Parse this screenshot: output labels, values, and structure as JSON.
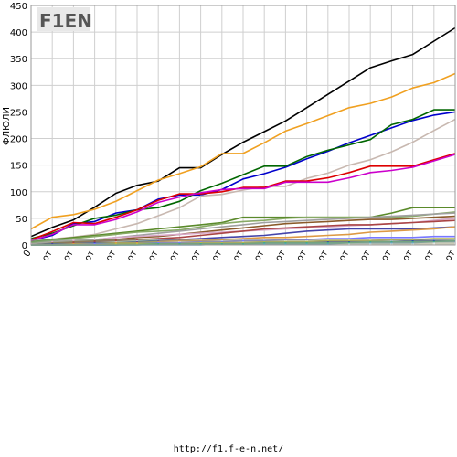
{
  "chart_data": {
    "type": "line",
    "ylabel": "ФЛЮЛИ",
    "ylim": [
      0,
      450
    ],
    "yticks": [
      0,
      50,
      100,
      150,
      200,
      250,
      300,
      350,
      400,
      450
    ],
    "x_ticks": [
      "0",
      "от",
      "от",
      "от",
      "от",
      "от",
      "от",
      "от",
      "от",
      "от",
      "от",
      "от",
      "от",
      "от",
      "от",
      "от",
      "от",
      "от",
      "от",
      "от",
      "от"
    ],
    "grid": true,
    "logo_text": "F1EN",
    "series": [
      {
        "color": "#000000",
        "values": [
          16,
          33,
          47,
          71,
          97,
          112,
          120,
          145,
          145,
          170,
          193,
          213,
          233,
          258,
          283,
          308,
          333,
          346,
          358,
          383,
          408
        ]
      },
      {
        "color": "#f0a020",
        "values": [
          30,
          52,
          57,
          67,
          82,
          102,
          122,
          134,
          147,
          172,
          172,
          192,
          214,
          228,
          243,
          258,
          266,
          278,
          295,
          305,
          322
        ]
      },
      {
        "color": "#0000cc",
        "values": [
          8,
          18,
          40,
          44,
          60,
          66,
          86,
          94,
          94,
          104,
          124,
          134,
          146,
          162,
          176,
          192,
          206,
          220,
          234,
          244,
          250
        ]
      },
      {
        "color": "#006600",
        "values": [
          12,
          22,
          36,
          50,
          56,
          66,
          70,
          82,
          102,
          116,
          132,
          148,
          148,
          166,
          178,
          188,
          198,
          226,
          236,
          254,
          254
        ]
      },
      {
        "color": "#c8b8b0",
        "values": [
          6,
          11,
          15,
          20,
          30,
          40,
          55,
          70,
          92,
          95,
          103,
          110,
          110,
          125,
          135,
          150,
          160,
          175,
          193,
          215,
          236
        ]
      },
      {
        "color": "#dd0000",
        "values": [
          10,
          25,
          42,
          40,
          52,
          66,
          84,
          96,
          96,
          100,
          108,
          108,
          120,
          120,
          126,
          136,
          148,
          148,
          148,
          160,
          172
        ]
      },
      {
        "color": "#cc00cc",
        "values": [
          8,
          20,
          38,
          38,
          48,
          62,
          80,
          90,
          98,
          104,
          106,
          106,
          118,
          118,
          118,
          126,
          136,
          140,
          146,
          158,
          170
        ]
      },
      {
        "color": "#5a8a2a",
        "values": [
          6,
          10,
          14,
          18,
          22,
          26,
          30,
          34,
          38,
          42,
          52,
          52,
          52,
          52,
          52,
          52,
          52,
          60,
          70,
          70,
          70
        ]
      },
      {
        "color": "#88aa66",
        "values": [
          4,
          8,
          12,
          16,
          20,
          24,
          26,
          28,
          34,
          40,
          44,
          46,
          50,
          52,
          52,
          52,
          52,
          52,
          54,
          58,
          62
        ]
      },
      {
        "color": "#a0a0a0",
        "values": [
          2,
          4,
          8,
          10,
          14,
          18,
          22,
          26,
          30,
          34,
          38,
          42,
          44,
          46,
          48,
          50,
          52,
          54,
          56,
          58,
          60
        ]
      },
      {
        "color": "#8a5a2a",
        "values": [
          2,
          4,
          6,
          8,
          10,
          14,
          16,
          20,
          24,
          28,
          32,
          36,
          40,
          42,
          44,
          46,
          48,
          48,
          50,
          52,
          54
        ]
      },
      {
        "color": "#d8a8c8",
        "values": [
          2,
          6,
          8,
          10,
          14,
          16,
          18,
          20,
          22,
          24,
          26,
          28,
          30,
          32,
          34,
          36,
          38,
          40,
          42,
          46,
          50
        ]
      },
      {
        "color": "#aa4444",
        "values": [
          0,
          2,
          4,
          6,
          8,
          10,
          12,
          14,
          18,
          22,
          26,
          30,
          32,
          34,
          36,
          38,
          38,
          40,
          42,
          44,
          46
        ]
      },
      {
        "color": "#4444aa",
        "values": [
          0,
          2,
          2,
          4,
          4,
          6,
          8,
          10,
          12,
          14,
          16,
          18,
          22,
          26,
          28,
          30,
          30,
          30,
          30,
          32,
          34
        ]
      },
      {
        "color": "#dd9944",
        "values": [
          0,
          0,
          2,
          2,
          4,
          4,
          6,
          8,
          8,
          10,
          12,
          14,
          14,
          16,
          18,
          20,
          24,
          26,
          28,
          30,
          34
        ]
      },
      {
        "color": "#7777ff",
        "values": [
          0,
          0,
          0,
          2,
          2,
          2,
          4,
          4,
          6,
          6,
          8,
          8,
          10,
          10,
          12,
          12,
          14,
          14,
          14,
          16,
          16
        ]
      },
      {
        "color": "#2233aa",
        "values": [
          0,
          0,
          0,
          0,
          0,
          2,
          2,
          2,
          2,
          4,
          4,
          4,
          4,
          4,
          6,
          6,
          6,
          6,
          8,
          8,
          8
        ]
      },
      {
        "color": "#66aacc",
        "values": [
          0,
          0,
          0,
          0,
          0,
          0,
          0,
          0,
          0,
          2,
          2,
          2,
          2,
          2,
          2,
          4,
          4,
          4,
          4,
          6,
          6
        ]
      },
      {
        "color": "#bbbb44",
        "values": [
          0,
          0,
          0,
          0,
          2,
          2,
          2,
          2,
          4,
          4,
          4,
          6,
          6,
          6,
          8,
          8,
          8,
          10,
          10,
          12,
          12
        ]
      },
      {
        "color": "#44aa88",
        "values": [
          0,
          0,
          0,
          0,
          0,
          0,
          2,
          2,
          2,
          2,
          2,
          4,
          4,
          4,
          4,
          4,
          6,
          6,
          6,
          6,
          8
        ]
      }
    ]
  },
  "footer": {
    "url": "http://f1.f-e-n.net/"
  }
}
